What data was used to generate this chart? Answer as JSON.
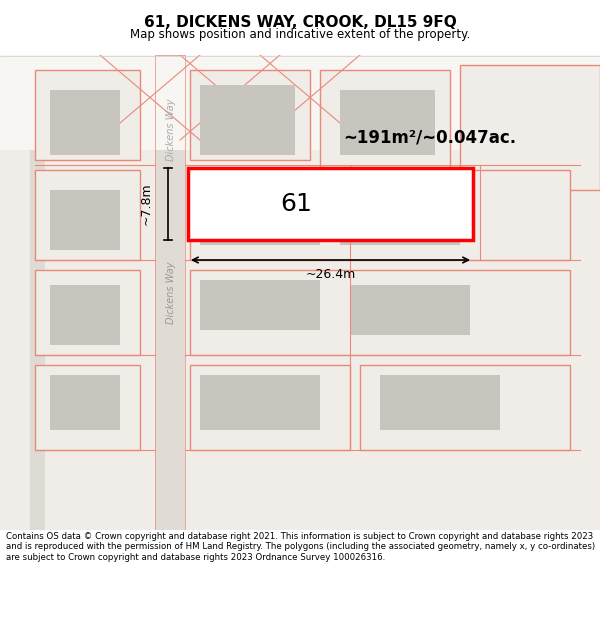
{
  "title_line1": "61, DICKENS WAY, CROOK, DL15 9FQ",
  "title_line2": "Map shows position and indicative extent of the property.",
  "footer_text": "Contains OS data © Crown copyright and database right 2021. This information is subject to Crown copyright and database rights 2023 and is reproduced with the permission of HM Land Registry. The polygons (including the associated geometry, namely x, y co-ordinates) are subject to Crown copyright and database rights 2023 Ordnance Survey 100026316.",
  "map_bg": "#f5f0eb",
  "road_color": "#cccccc",
  "plot_outline_color": "#e8897a",
  "highlight_color": "#ff0000",
  "highlight_fill": "#ffffff",
  "area_text": "~191m²/~0.047ac.",
  "label_61": "61",
  "dim_width": "~26.4m",
  "dim_height": "~7.8m",
  "title_bg": "#ffffff",
  "footer_bg": "#ffffff"
}
